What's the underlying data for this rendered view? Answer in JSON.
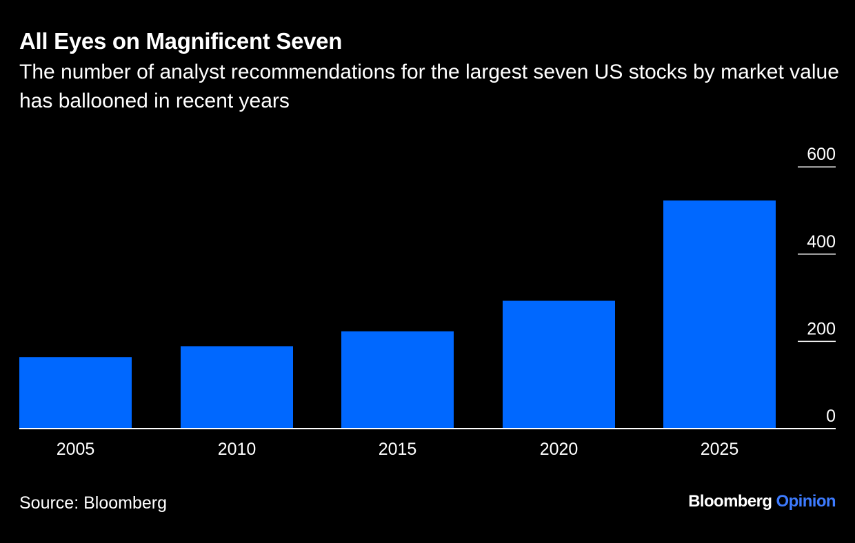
{
  "header": {
    "title": "All Eyes on Magnificent Seven",
    "subtitle": "The number of analyst recommendations for the largest seven US stocks by market value has ballooned in recent years"
  },
  "footer": {
    "source": "Source: Bloomberg",
    "brand_name": "Bloomberg",
    "brand_section": "Opinion"
  },
  "colors": {
    "background": "#000000",
    "bar": "#0068ff",
    "text": "#ffffff",
    "brand_accent": "#3d7bff",
    "axis": "#ffffff"
  },
  "chart_data": {
    "type": "bar",
    "title": "All Eyes on Magnificent Seven",
    "xlabel": "",
    "ylabel": "",
    "categories": [
      "2005",
      "2010",
      "2015",
      "2020",
      "2025"
    ],
    "values": [
      164,
      189,
      223,
      293,
      523
    ],
    "ylim": [
      0,
      600
    ],
    "yticks": [
      0,
      200,
      400,
      600
    ],
    "ytick_labels": [
      "0",
      "200",
      "400",
      "600"
    ],
    "yaxis_position": "right",
    "grid": false,
    "legend": "none"
  }
}
